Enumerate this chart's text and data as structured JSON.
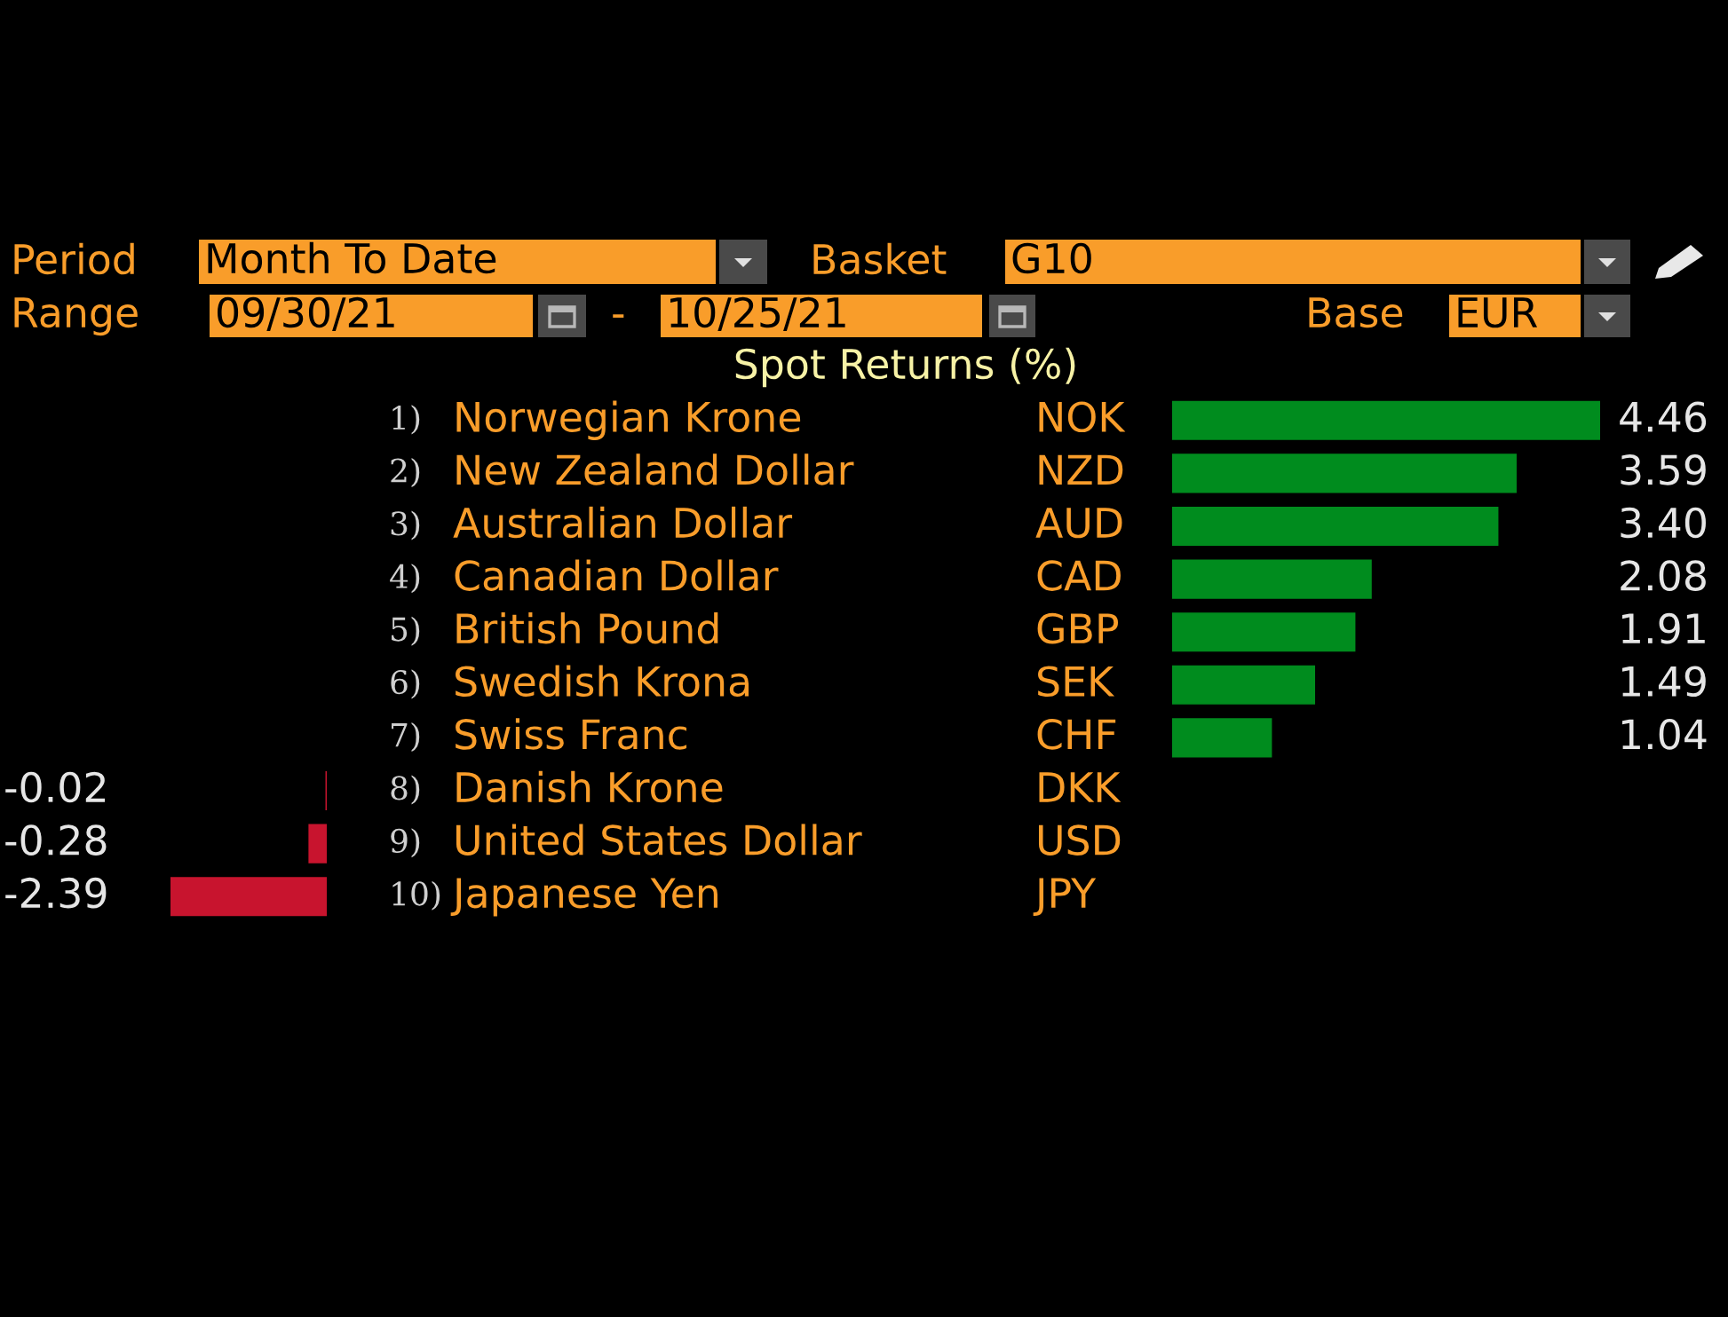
{
  "chart_data": [
    {
      "type": "bar",
      "orientation": "horizontal",
      "title": "Spot Returns (%)",
      "categories": [
        "1) Norwegian Krone",
        "2) New Zealand Dollar",
        "3) Australian Dollar",
        "4) Canadian Dollar",
        "5) British Pound",
        "6) Swedish Krona",
        "7) Swiss Franc",
        "8) Danish Krone",
        "9) United States Dollar",
        "10) Japanese Yen"
      ],
      "y2_categories": [
        "NOK",
        "NZD",
        "AUD",
        "CAD",
        "GBP",
        "SEK",
        "CHF",
        "DKK",
        "USD",
        "JPY"
      ],
      "values": [
        4.46,
        3.59,
        3.4,
        2.08,
        1.91,
        1.49,
        1.04,
        null,
        null,
        null
      ],
      "color": "#008c1e",
      "value_labels": [
        "4.46",
        "3.59",
        "3.40",
        "2.08",
        "1.91",
        "1.49",
        "1.04",
        null,
        null,
        null
      ],
      "annotations": [
        "Period",
        "Month To Date",
        "Basket",
        "G10",
        "Range",
        "09/30/21",
        "-",
        "10/25/21",
        "Base",
        "EUR"
      ]
    },
    {
      "type": "bar",
      "orientation": "horizontal",
      "categories": [
        null,
        null,
        null,
        null,
        null,
        null,
        null,
        null,
        null,
        null
      ],
      "values": [
        null,
        null,
        null,
        null,
        null,
        null,
        null,
        -0.02,
        -0.28,
        -2.39
      ],
      "color": "#c8142e",
      "value_labels": [
        null,
        null,
        null,
        null,
        null,
        null,
        null,
        "-0.02",
        "-0.28",
        "-2.39"
      ]
    }
  ]
}
